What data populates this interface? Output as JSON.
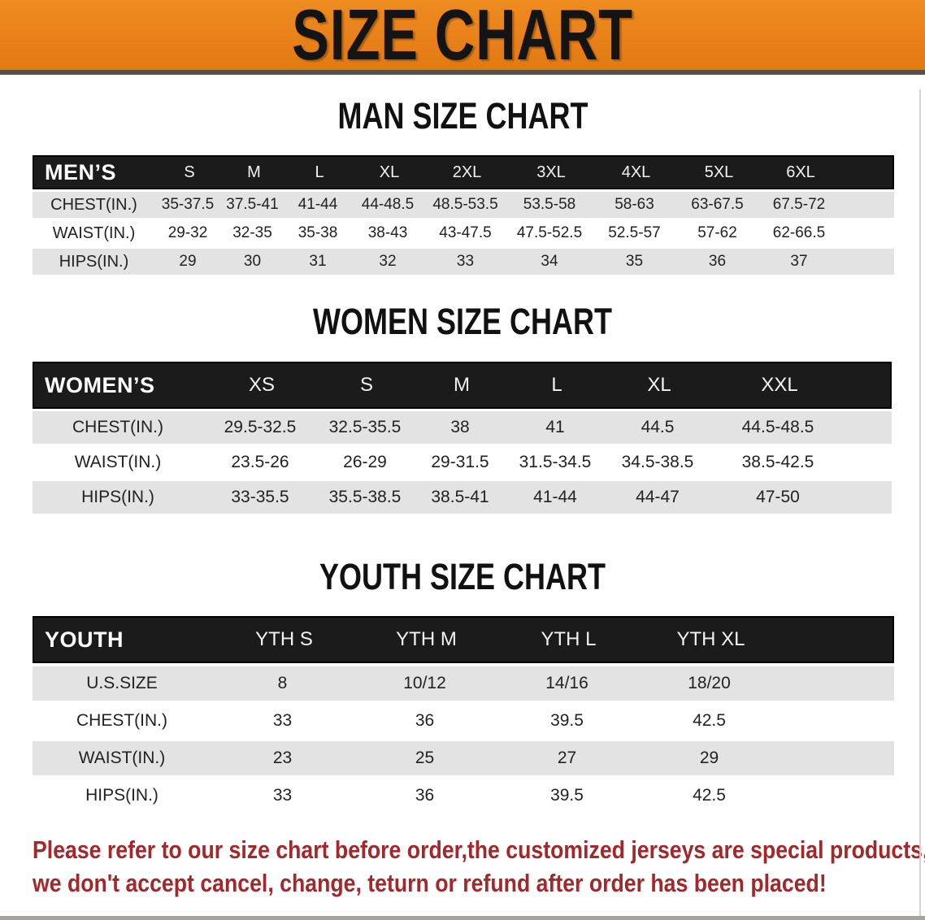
{
  "banner": {
    "title": "SIZE CHART",
    "bg_color": "#e8801a",
    "text_color": "#141414"
  },
  "sections": [
    {
      "id": "men",
      "title": "MAN SIZE CHART",
      "table": {
        "corner_label": "MEN’S",
        "sizes": [
          "S",
          "M",
          "L",
          "XL",
          "2XL",
          "3XL",
          "4XL",
          "5XL",
          "6XL"
        ],
        "rows": [
          {
            "label": "CHEST(IN.)",
            "values": [
              "35-37.5",
              "37.5-41",
              "41-44",
              "44-48.5",
              "48.5-53.5",
              "53.5-58",
              "58-63",
              "63-67.5",
              "67.5-72"
            ]
          },
          {
            "label": "WAIST(IN.)",
            "values": [
              "29-32",
              "32-35",
              "35-38",
              "38-43",
              "43-47.5",
              "47.5-52.5",
              "52.5-57",
              "57-62",
              "62-66.5"
            ]
          },
          {
            "label": "HIPS(IN.)",
            "values": [
              "29",
              "30",
              "31",
              "32",
              "33",
              "34",
              "35",
              "36",
              "37"
            ]
          }
        ]
      }
    },
    {
      "id": "women",
      "title": "WOMEN SIZE CHART",
      "table": {
        "corner_label": "WOMEN’S",
        "sizes": [
          "XS",
          "S",
          "M",
          "L",
          "XL",
          "XXL"
        ],
        "rows": [
          {
            "label": "CHEST(IN.)",
            "values": [
              "29.5-32.5",
              "32.5-35.5",
              "38",
              "41",
              "44.5",
              "44.5-48.5"
            ]
          },
          {
            "label": "WAIST(IN.)",
            "values": [
              "23.5-26",
              "26-29",
              "29-31.5",
              "31.5-34.5",
              "34.5-38.5",
              "38.5-42.5"
            ]
          },
          {
            "label": "HIPS(IN.)",
            "values": [
              "33-35.5",
              "35.5-38.5",
              "38.5-41",
              "41-44",
              "44-47",
              "47-50"
            ]
          }
        ]
      }
    },
    {
      "id": "youth",
      "title": "YOUTH SIZE CHART",
      "table": {
        "corner_label": "YOUTH",
        "sizes": [
          "YTH S",
          "YTH M",
          "YTH L",
          "YTH XL"
        ],
        "rows": [
          {
            "label": "U.S.SIZE",
            "values": [
              "8",
              "10/12",
              "14/16",
              "18/20"
            ]
          },
          {
            "label": "CHEST(IN.)",
            "values": [
              "33",
              "36",
              "39.5",
              "42.5"
            ]
          },
          {
            "label": "WAIST(IN.)",
            "values": [
              "23",
              "25",
              "27",
              "29"
            ]
          },
          {
            "label": "HIPS(IN.)",
            "values": [
              "33",
              "36",
              "39.5",
              "42.5"
            ]
          }
        ]
      }
    }
  ],
  "disclaimer": {
    "line1": "Please refer to our size chart before order,the customized jerseys are special products,",
    "line2": "we don't accept cancel, change, teturn or refund after order has been placed!",
    "color": "#a3282b"
  },
  "colors": {
    "table_header_bg": "#1b1b1b",
    "row_stripe": "#e3e3e3"
  }
}
